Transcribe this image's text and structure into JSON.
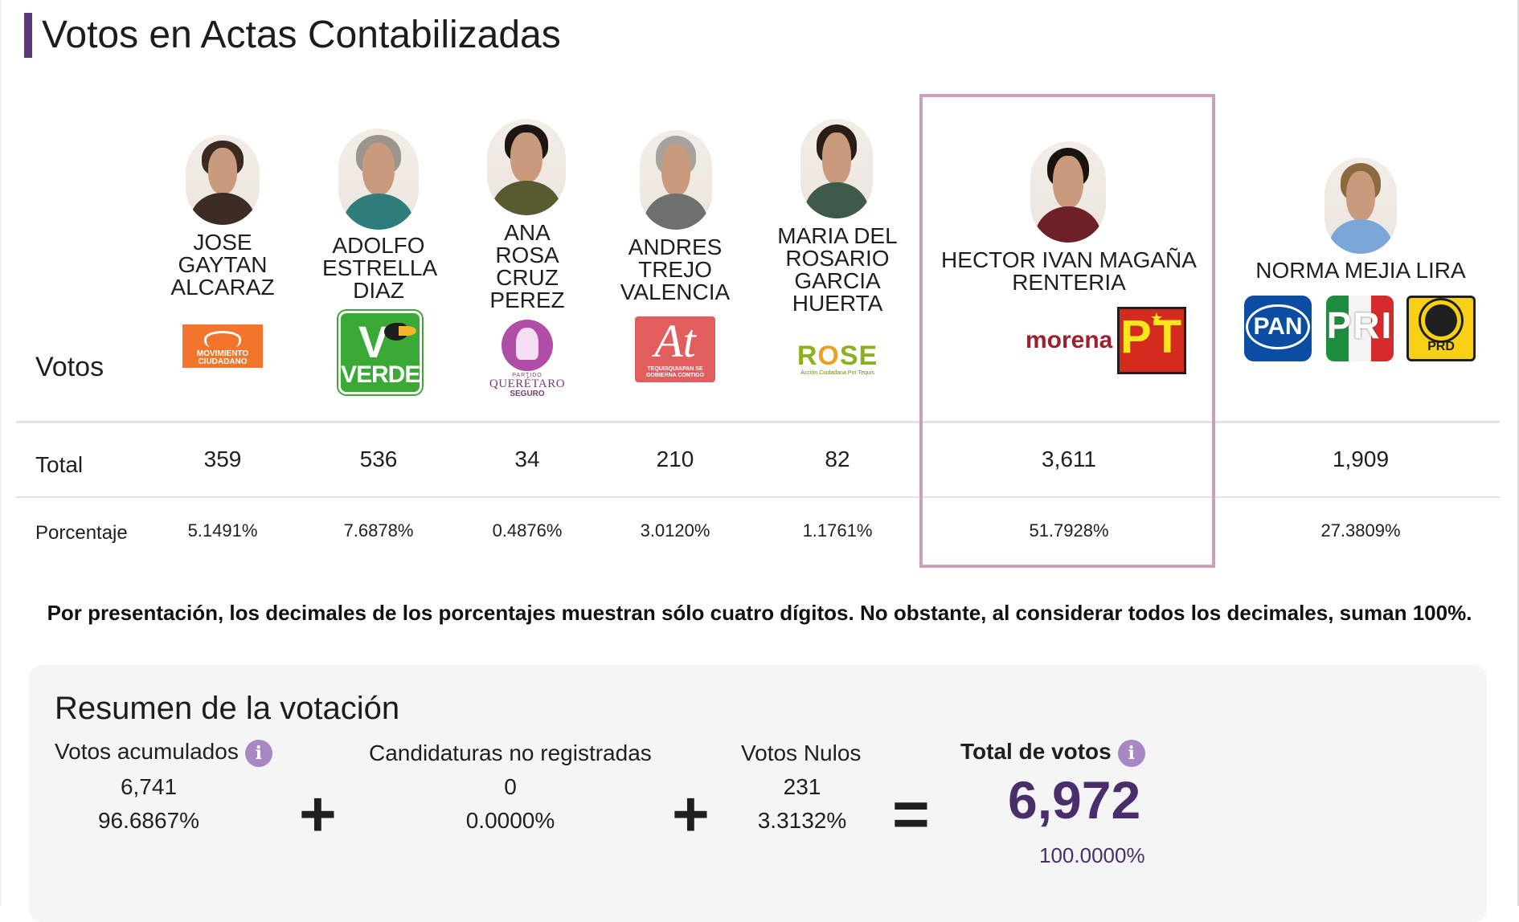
{
  "header": {
    "title": "Votos en Actas Contabilizadas"
  },
  "row_labels": {
    "votos": "Votos",
    "total": "Total",
    "porcentaje": "Porcentaje"
  },
  "candidates": [
    {
      "name": "JOSE GAYTAN ALCARAZ",
      "total": "359",
      "percent": "5.1491%",
      "parties": [
        "MOVIMIENTO CIUDADANO"
      ]
    },
    {
      "name": "ADOLFO ESTRELLA DIAZ",
      "total": "536",
      "percent": "7.6878%",
      "parties": [
        "VERDE"
      ]
    },
    {
      "name": "ANA ROSA CRUZ PEREZ",
      "total": "34",
      "percent": "0.4876%",
      "parties": [
        "QUERÉTARO SEGURO"
      ]
    },
    {
      "name": "ANDRES TREJO VALENCIA",
      "total": "210",
      "percent": "3.0120%",
      "parties": [
        "TEQUISQUIAPAN SE GOBIERNA CONTIGO"
      ]
    },
    {
      "name": "MARIA DEL ROSARIO GARCIA HUERTA",
      "total": "82",
      "percent": "1.1761%",
      "parties": [
        "ROSE"
      ]
    },
    {
      "name": "HECTOR IVAN MAGAÑA RENTERIA",
      "total": "3,611",
      "percent": "51.7928%",
      "parties": [
        "morena",
        "PT"
      ],
      "highlighted": true
    },
    {
      "name": "NORMA MEJIA LIRA",
      "total": "1,909",
      "percent": "27.3809%",
      "parties": [
        "PAN",
        "PRI",
        "PRD"
      ]
    }
  ],
  "logos": {
    "mc_text": "MOVIMIENTO CIUDADANO",
    "verde_text": "VERDE",
    "qs_small": "PARTIDO",
    "qs_big": "QUERÉTARO",
    "qs_seg": "SEGURO",
    "at_mark": "At",
    "at_sub": "TEQUISQUIAPAN SE GOBIERNA CONTIGO",
    "rose_word_a": "R",
    "rose_word_o": "O",
    "rose_word_b": "SE",
    "rose_sub": "Acción Ciudadana Por Tequis",
    "morena": "morena",
    "pt": "PT",
    "pan": "PAN",
    "pri": "PRI",
    "prd": "PRD"
  },
  "note": "Por presentación, los decimales de los porcentajes muestran sólo cuatro dígitos. No obstante, al considerar todos los decimales, suman 100%.",
  "summary": {
    "title": "Resumen de la votación",
    "acumulados": {
      "label": "Votos acumulados",
      "value": "6,741",
      "percent": "96.6867%"
    },
    "no_registradas": {
      "label": "Candidaturas no registradas",
      "value": "0",
      "percent": "0.0000%"
    },
    "nulos": {
      "label": "Votos Nulos",
      "value": "231",
      "percent": "3.3132%"
    },
    "total": {
      "label": "Total de votos",
      "value": "6,972",
      "percent": "100.0000%"
    },
    "ops": {
      "plus": "+",
      "equals": "="
    },
    "info_glyph": "i"
  },
  "colors": {
    "accent": "#5b3a7c",
    "highlight_border": "#c9a0b8",
    "grand_total": "#4a2d6b",
    "info_icon": "#a888c4"
  }
}
